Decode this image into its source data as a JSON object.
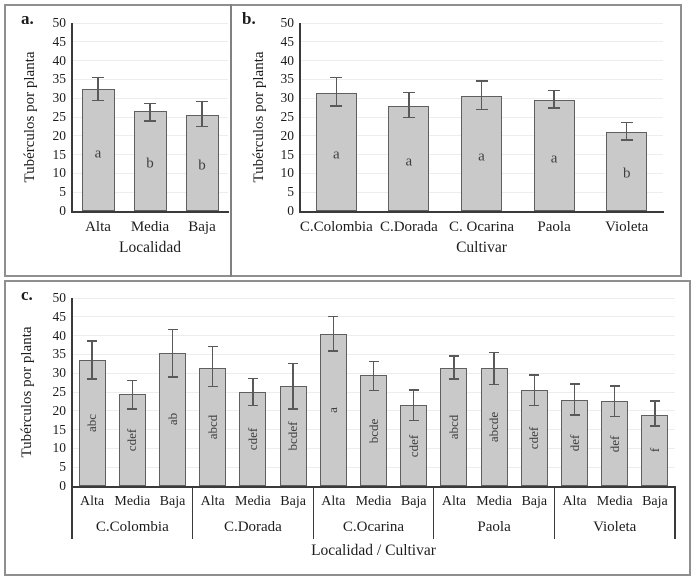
{
  "figure": {
    "background": "#ffffff",
    "panel_border_color": "#8f8f8f",
    "divider_color": "#808080"
  },
  "styles": {
    "bar_fill": "#c9c9c9",
    "bar_border": "#5f5f5f",
    "error_color": "#595959",
    "grid_color": "#ededed",
    "axis_color": "#3a3a3a",
    "text_color": "#1c1c1c",
    "letter_color": "#3f3f3f"
  },
  "chart_data": [
    {
      "id": "a",
      "type": "bar",
      "panel_label": "a.",
      "title": "",
      "ylabel": "Tubérculos por planta",
      "xlabel": "Localidad",
      "ylim": [
        0,
        50
      ],
      "ytick_step": 5,
      "grid": true,
      "error_bars": true,
      "letters_rotated": false,
      "categories": [
        "Alta",
        "Media",
        "Baja"
      ],
      "values": [
        32.5,
        26.5,
        25.5
      ],
      "error_low": [
        29.5,
        24,
        22.5
      ],
      "error_high": [
        35.5,
        28.5,
        29
      ],
      "sig_letters": [
        "a",
        "b",
        "b"
      ]
    },
    {
      "id": "b",
      "type": "bar",
      "panel_label": "b.",
      "title": "",
      "ylabel": "Tubérculos por planta",
      "xlabel": "Cultivar",
      "ylim": [
        0,
        50
      ],
      "ytick_step": 5,
      "grid": true,
      "error_bars": true,
      "letters_rotated": false,
      "categories": [
        "C.Colombia",
        "C.Dorada",
        "C. Ocarina",
        "Paola",
        "Violeta"
      ],
      "values": [
        31.5,
        28,
        30.5,
        29.5,
        21
      ],
      "error_low": [
        28,
        25,
        27,
        27.5,
        19
      ],
      "error_high": [
        35.5,
        31.5,
        34.5,
        32,
        23.5
      ],
      "sig_letters": [
        "a",
        "a",
        "a",
        "a",
        "b"
      ]
    },
    {
      "id": "c",
      "type": "bar",
      "panel_label": "c.",
      "title": "",
      "ylabel": "Tubérculos por planta",
      "xlabel": "Localidad / Cultivar",
      "ylim": [
        0,
        50
      ],
      "ytick_step": 5,
      "grid": true,
      "error_bars": true,
      "letters_rotated": true,
      "groups": [
        {
          "label": "C.Colombia",
          "categories": [
            "Alta",
            "Media",
            "Baja"
          ],
          "values": [
            33.5,
            24.5,
            35.5
          ],
          "error_low": [
            28.5,
            20.5,
            29
          ],
          "error_high": [
            38.5,
            28,
            41.5
          ],
          "sig_letters": [
            "abc",
            "cdef",
            "ab"
          ]
        },
        {
          "label": "C.Dorada",
          "categories": [
            "Alta",
            "Media",
            "Baja"
          ],
          "values": [
            31.5,
            25,
            26.5
          ],
          "error_low": [
            26.5,
            21.5,
            20.5
          ],
          "error_high": [
            37,
            28.5,
            32.5
          ],
          "sig_letters": [
            "abcd",
            "cdef",
            "bcdef"
          ]
        },
        {
          "label": "C.Ocarina",
          "categories": [
            "Alta",
            "Media",
            "Baja"
          ],
          "values": [
            40.5,
            29.5,
            21.5
          ],
          "error_low": [
            36,
            25.5,
            17.5
          ],
          "error_high": [
            45,
            33,
            25.5
          ],
          "sig_letters": [
            "a",
            "bcde",
            "cdef"
          ]
        },
        {
          "label": "Paola",
          "categories": [
            "Alta",
            "Media",
            "Baja"
          ],
          "values": [
            31.5,
            31.5,
            25.5
          ],
          "error_low": [
            28.5,
            27,
            21.5
          ],
          "error_high": [
            34.5,
            35.5,
            29.5
          ],
          "sig_letters": [
            "abcd",
            "abcde",
            "cdef"
          ]
        },
        {
          "label": "Violeta",
          "categories": [
            "Alta",
            "Media",
            "Baja"
          ],
          "values": [
            23,
            22.5,
            19
          ],
          "error_low": [
            19,
            18.5,
            16
          ],
          "error_high": [
            27,
            26.5,
            22.5
          ],
          "sig_letters": [
            "def",
            "def",
            "f"
          ]
        }
      ]
    }
  ]
}
